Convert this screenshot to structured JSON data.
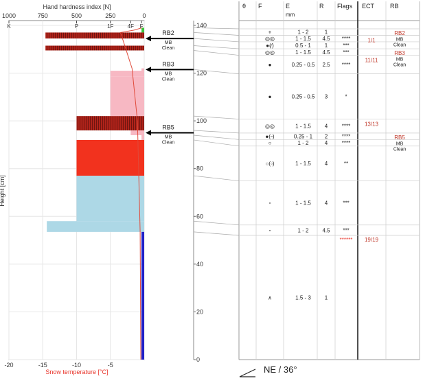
{
  "chart_data": {
    "type": "snow-profile",
    "top_axis_label": "Hand hardness index [N]",
    "top_ticks": [
      {
        "value": 1000,
        "label": "1000"
      },
      {
        "value": 750,
        "label": "750"
      },
      {
        "value": 500,
        "label": "500"
      },
      {
        "value": 250,
        "label": "250"
      },
      {
        "value": 0,
        "label": "0"
      }
    ],
    "hardness_ticks": [
      {
        "value": 1000,
        "label": "K"
      },
      {
        "value": 500,
        "label": "P"
      },
      {
        "value": 250,
        "label": "1F"
      },
      {
        "value": 100,
        "label": "4F"
      },
      {
        "value": 20,
        "label": "F"
      }
    ],
    "bottom_axis_label": "Snow temperature [°C]",
    "temp_ticks": [
      {
        "value": -20,
        "label": "-20"
      },
      {
        "value": -15,
        "label": "-15"
      },
      {
        "value": -10,
        "label": "-10"
      },
      {
        "value": -5,
        "label": "-5"
      }
    ],
    "height_axis_label": "Height [cm]",
    "height_ticks": [
      {
        "value": 0,
        "label": "0"
      },
      {
        "value": 20,
        "label": "20"
      },
      {
        "value": 40,
        "label": "40"
      },
      {
        "value": 60,
        "label": "60"
      },
      {
        "value": 80,
        "label": "80"
      },
      {
        "value": 100,
        "label": "100"
      },
      {
        "value": 120,
        "label": "120"
      },
      {
        "value": 140,
        "label": "140"
      }
    ],
    "hmax": 142,
    "hardness_max": 1000,
    "temp_min": -20,
    "colors": {
      "striped": "#b0231a",
      "pink": "#f7b8c3",
      "red": "#f2321e",
      "blue": "#add8e6",
      "green": "#3cc43c",
      "profile_line": "#e04a3a",
      "base_bar": "#2020c8"
    },
    "layers": [
      {
        "bottom": 137,
        "top": 139,
        "hardness": 20,
        "kind": "green"
      },
      {
        "bottom": 134.5,
        "top": 137,
        "hardness": 730,
        "kind": "striped"
      },
      {
        "bottom": 129.5,
        "top": 131.5,
        "hardness": 730,
        "kind": "striped"
      },
      {
        "bottom": 121,
        "top": 122,
        "hardness": 20,
        "kind": "pink"
      },
      {
        "bottom": 118.5,
        "top": 121,
        "hardness": 250,
        "kind": "pink"
      },
      {
        "bottom": 102,
        "top": 118.5,
        "hardness": 250,
        "kind": "pink"
      },
      {
        "bottom": 96,
        "top": 102,
        "hardness": 500,
        "kind": "striped"
      },
      {
        "bottom": 94,
        "top": 96,
        "hardness": 100,
        "kind": "pink"
      },
      {
        "bottom": 92,
        "top": 94,
        "hardness": 20,
        "kind": "pink"
      },
      {
        "bottom": 77,
        "top": 92,
        "hardness": 500,
        "kind": "red"
      },
      {
        "bottom": 58,
        "top": 77,
        "hardness": 500,
        "kind": "blue"
      },
      {
        "bottom": 53.5,
        "top": 58,
        "hardness": 720,
        "kind": "blue"
      }
    ],
    "base_bar": {
      "bottom": 0,
      "top": 53.5
    },
    "temperature_profile": [
      {
        "t": -0.5,
        "h": 0
      },
      {
        "t": -0.6,
        "h": 53.5
      },
      {
        "t": -1.0,
        "h": 100
      },
      {
        "t": -1.8,
        "h": 122
      },
      {
        "t": -3.5,
        "h": 137
      },
      {
        "t": -1.5,
        "h": 138
      },
      {
        "t": -0.3,
        "h": 139
      }
    ],
    "rb_markers": [
      {
        "height": 134.5,
        "label": "RB2",
        "sub1": "MB",
        "sub2": "Clean"
      },
      {
        "height": 121.5,
        "label": "RB3",
        "sub1": "MB",
        "sub2": "Clean"
      },
      {
        "height": 95,
        "label": "RB5",
        "sub1": "MB",
        "sub2": "Clean"
      }
    ],
    "table": {
      "headers": {
        "theta": "θ",
        "f": "F",
        "e": "E",
        "e_unit": "mm",
        "r": "R",
        "flags": "Flags",
        "ect": "ECT",
        "rb": "RB"
      },
      "rows": [
        {
          "bottom": 137,
          "top": 139,
          "grain": "+",
          "size": "1 - 2",
          "r": "1",
          "flags": "",
          "ect": "",
          "rb": "RB2",
          "rb_sub1": "",
          "rb_sub2": ""
        },
        {
          "bottom": 134.5,
          "top": 137,
          "grain": "◎◎",
          "size": "1 - 1.5",
          "r": "4.5",
          "flags": "****",
          "ect": "1/1",
          "rb": "",
          "rb_sub1": "MB",
          "rb_sub2": "Clean"
        },
        {
          "bottom": 131.5,
          "top": 134.5,
          "grain": "●(⁄)",
          "size": "0.5 - 1",
          "r": "1",
          "flags": "***",
          "ect": "",
          "rb": "",
          "rb_sub1": "",
          "rb_sub2": ""
        },
        {
          "bottom": 129.5,
          "top": 131.5,
          "grain": "◎◎",
          "size": "1 - 1.5",
          "r": "4.5",
          "flags": "***",
          "ect": "",
          "rb": "RB3",
          "rb_sub1": "",
          "rb_sub2": ""
        },
        {
          "bottom": 121.5,
          "top": 129.5,
          "grain": "●",
          "size": "0.25 - 0.5",
          "r": "2.5",
          "flags": "****",
          "ect": "11/11",
          "rb": "",
          "rb_sub1": "MB",
          "rb_sub2": "Clean"
        },
        {
          "bottom": 102,
          "top": 121.5,
          "grain": "●",
          "size": "0.25 - 0.5",
          "r": "3",
          "flags": "*",
          "ect": "",
          "rb": "",
          "rb_sub1": "",
          "rb_sub2": ""
        },
        {
          "bottom": 96,
          "top": 102,
          "grain": "◎◎",
          "size": "1 - 1.5",
          "r": "4",
          "flags": "****",
          "ect": "13/13",
          "rb": "",
          "rb_sub1": "",
          "rb_sub2": ""
        },
        {
          "bottom": 94,
          "top": 96,
          "grain": "●(▫)",
          "size": "0.25 - 1",
          "r": "2",
          "flags": "****",
          "ect": "",
          "rb": "RB5",
          "rb_sub1": "",
          "rb_sub2": ""
        },
        {
          "bottom": 92,
          "top": 94,
          "grain": "○",
          "size": "1 - 2",
          "r": "4",
          "flags": "****",
          "ect": "",
          "rb": "",
          "rb_sub1": "MB",
          "rb_sub2": "Clean"
        },
        {
          "bottom": 77,
          "top": 92,
          "grain": "○(▫)",
          "size": "1 - 1.5",
          "r": "4",
          "flags": "**",
          "ect": "",
          "rb": "",
          "rb_sub1": "",
          "rb_sub2": ""
        },
        {
          "bottom": 58,
          "top": 77,
          "grain": "▫",
          "size": "1 - 1.5",
          "r": "4",
          "flags": "***",
          "ect": "",
          "rb": "",
          "rb_sub1": "",
          "rb_sub2": ""
        },
        {
          "bottom": 53.5,
          "top": 58,
          "grain": "▫",
          "size": "1 - 2",
          "r": "4.5",
          "flags": "***",
          "ect": "",
          "rb": "",
          "rb_sub1": "",
          "rb_sub2": ""
        },
        {
          "bottom": 0,
          "top": 53.5,
          "grain": "∧",
          "size": "1.5 - 3",
          "r": "1",
          "flags": "",
          "ect": "",
          "rb": "",
          "rb_sub1": "",
          "rb_sub2": ""
        }
      ],
      "extra_marks": [
        {
          "height": 52.5,
          "text": "******",
          "col": "flags",
          "color": "#e8342a"
        },
        {
          "height": 52.5,
          "text": "19/19",
          "col": "ect",
          "color": "#c0392b"
        }
      ]
    },
    "aspect": "NE / 36°"
  }
}
